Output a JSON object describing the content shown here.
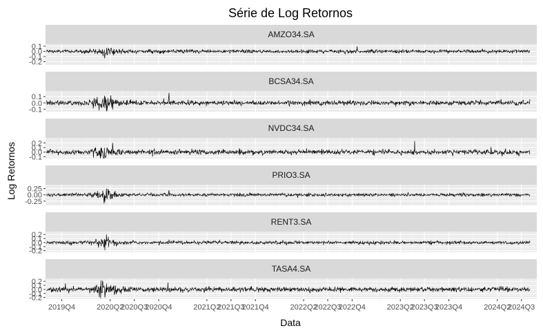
{
  "chart_data": {
    "type": "line",
    "title": "Série de Log Retornos",
    "xlabel": "Data",
    "ylabel": "Log Retornos",
    "x_range": [
      "2019-08-01",
      "2024-08-28"
    ],
    "x_ticks": [
      "2019Q4",
      "2020Q2",
      "2020Q3",
      "2020Q4",
      "2021Q2",
      "2021Q3",
      "2021Q4",
      "2022Q2",
      "2022Q3",
      "2022Q4",
      "2023Q2",
      "2023Q3",
      "2023Q4",
      "2024Q2",
      "2024Q3"
    ],
    "grid": true,
    "line_color": "#000000",
    "panel_background": "#ebebeb",
    "strip_background": "#d9d9d9",
    "panels": [
      {
        "name": "AMZO34.SA",
        "ylim": [
          -0.26,
          0.14
        ],
        "yticks": [
          "0.1",
          "0.0",
          "-0.1",
          "-0.2"
        ],
        "baseline": 0.0,
        "noise": 0.016,
        "events": [
          {
            "date": "2019-10-20",
            "value": 0.05
          },
          {
            "date": "2020-01-10",
            "value": -0.03
          },
          {
            "date": "2020-03-15",
            "value": 0.06
          },
          {
            "date": "2020-04-10",
            "value": -0.05
          },
          {
            "date": "2022-05-01",
            "value": 0.04
          },
          {
            "date": "2022-09-05",
            "value": -0.05
          },
          {
            "date": "2022-09-25",
            "value": -0.22
          },
          {
            "date": "2022-10-20",
            "value": 0.1
          },
          {
            "date": "2022-11-05",
            "value": 0.07
          },
          {
            "date": "2023-04-15",
            "value": -0.12
          },
          {
            "date": "2024-02-05",
            "value": 0.05
          }
        ]
      },
      {
        "name": "BCSA34.SA",
        "ylim": [
          -0.14,
          0.19
        ],
        "yticks": [
          "0.1",
          "0.0",
          "-0.1"
        ],
        "baseline": 0.0,
        "noise": 0.018,
        "events": [
          {
            "date": "2019-08-05",
            "value": 0.04
          },
          {
            "date": "2020-03-05",
            "value": 0.07
          },
          {
            "date": "2020-03-12",
            "value": -0.08
          },
          {
            "date": "2020-03-20",
            "value": -0.12
          },
          {
            "date": "2020-04-01",
            "value": 0.06
          },
          {
            "date": "2020-11-09",
            "value": 0.16
          },
          {
            "date": "2020-10-20",
            "value": 0.07
          },
          {
            "date": "2021-01-20",
            "value": 0.05
          },
          {
            "date": "2023-03-15",
            "value": -0.06
          },
          {
            "date": "2023-05-05",
            "value": -0.05
          }
        ]
      },
      {
        "name": "NVDC34.SA",
        "ylim": [
          -0.14,
          0.31
        ],
        "yticks": [
          "0.2",
          "0.1",
          "0.0",
          "-0.1"
        ],
        "baseline": 0.0,
        "noise": 0.026,
        "events": [
          {
            "date": "2020-03-16",
            "value": -0.1
          },
          {
            "date": "2020-03-20",
            "value": 0.1
          },
          {
            "date": "2020-09-08",
            "value": -0.1
          },
          {
            "date": "2020-09-15",
            "value": 0.08
          },
          {
            "date": "2021-06-01",
            "value": 0.07
          },
          {
            "date": "2023-05-25",
            "value": 0.24
          },
          {
            "date": "2024-04-19",
            "value": -0.09
          },
          {
            "date": "2024-03-08",
            "value": 0.11
          },
          {
            "date": "2024-07-20",
            "value": -0.08
          }
        ]
      },
      {
        "name": "PRIO3.SA",
        "ylim": [
          -0.42,
          0.4
        ],
        "yticks": [
          "0.25",
          "0.00",
          "-0.25"
        ],
        "baseline": 0.0,
        "noise": 0.03,
        "events": [
          {
            "date": "2020-03-09",
            "value": -0.35
          },
          {
            "date": "2020-03-12",
            "value": -0.28
          },
          {
            "date": "2020-03-18",
            "value": 0.25
          },
          {
            "date": "2020-03-25",
            "value": 0.2
          },
          {
            "date": "2020-04-02",
            "value": -0.18
          },
          {
            "date": "2020-04-20",
            "value": 0.15
          },
          {
            "date": "2020-11-09",
            "value": 0.18
          },
          {
            "date": "2022-03-10",
            "value": -0.1
          },
          {
            "date": "2022-09-20",
            "value": -0.06
          }
        ]
      },
      {
        "name": "RENT3.SA",
        "ylim": [
          -0.24,
          0.27
        ],
        "yticks": [
          "0.2",
          "0.1",
          "0.0",
          "-0.1",
          "-0.2"
        ],
        "baseline": 0.0,
        "noise": 0.02,
        "events": [
          {
            "date": "2020-03-09",
            "value": -0.12
          },
          {
            "date": "2020-03-12",
            "value": -0.19
          },
          {
            "date": "2020-03-18",
            "value": 0.2
          },
          {
            "date": "2020-03-25",
            "value": 0.14
          },
          {
            "date": "2020-04-05",
            "value": -0.1
          },
          {
            "date": "2020-05-10",
            "value": 0.07
          },
          {
            "date": "2020-11-09",
            "value": 0.07
          },
          {
            "date": "2022-03-01",
            "value": 0.04
          }
        ]
      },
      {
        "name": "TASA4.SA",
        "ylim": [
          -0.24,
          0.27
        ],
        "yticks": [
          "0.2",
          "0.1",
          "0.0",
          "-0.1",
          "-0.2"
        ],
        "baseline": 0.0,
        "noise": 0.03,
        "events": [
          {
            "date": "2019-08-10",
            "value": 0.12
          },
          {
            "date": "2019-09-01",
            "value": -0.1
          },
          {
            "date": "2019-10-15",
            "value": 0.15
          },
          {
            "date": "2020-03-12",
            "value": -0.2
          },
          {
            "date": "2020-03-18",
            "value": 0.14
          },
          {
            "date": "2020-04-15",
            "value": 0.1
          },
          {
            "date": "2020-11-05",
            "value": 0.17
          },
          {
            "date": "2020-11-12",
            "value": -0.07
          },
          {
            "date": "2023-05-20",
            "value": -0.15
          },
          {
            "date": "2023-03-01",
            "value": 0.06
          }
        ]
      }
    ]
  }
}
